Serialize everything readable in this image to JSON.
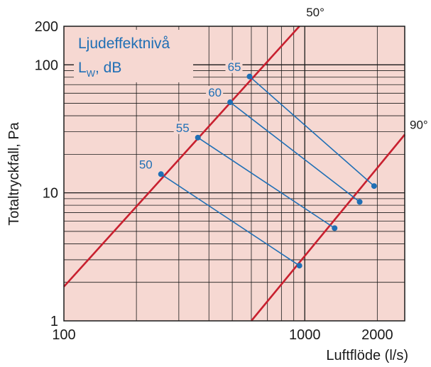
{
  "chart_data": {
    "type": "line",
    "title": "",
    "xlabel": "Luftflöde (l/s)",
    "ylabel": "Totaltryckfall, Pa",
    "xscale": "log",
    "yscale": "log",
    "xlim": [
      100,
      2600
    ],
    "ylim": [
      1,
      200
    ],
    "x_tick_labels": [
      {
        "value": 100,
        "label": "100"
      },
      {
        "value": 1000,
        "label": "1000"
      },
      {
        "value": 2000,
        "label": "2000"
      }
    ],
    "y_tick_labels": [
      {
        "value": 1,
        "label": "1"
      },
      {
        "value": 10,
        "label": "10"
      },
      {
        "value": 100,
        "label": "100"
      },
      {
        "value": 200,
        "label": "200"
      }
    ],
    "grid": true,
    "background_color": "#f6d8d2",
    "grid_color": "#1a1a1a",
    "legend_title": {
      "line1": "Ljudeffektnivå",
      "L": "L",
      "sub": "W",
      "rest": ", dB"
    },
    "damper_lines": [
      {
        "name": "50°",
        "color": "#c8202f",
        "x": [
          100,
          950
        ],
        "y": [
          1.85,
          200
        ]
      },
      {
        "name": "90°",
        "color": "#c8202f",
        "x": [
          600,
          2600
        ],
        "y": [
          1,
          28.5
        ]
      }
    ],
    "sound_lines": [
      {
        "label": "50",
        "color": "#1f6fb5",
        "x": [
          253,
          950
        ],
        "y": [
          14,
          2.7
        ]
      },
      {
        "label": "55",
        "color": "#1f6fb5",
        "x": [
          360,
          1330
        ],
        "y": [
          27,
          5.3
        ]
      },
      {
        "label": "60",
        "color": "#1f6fb5",
        "x": [
          490,
          1690
        ],
        "y": [
          51,
          8.5
        ]
      },
      {
        "label": "65",
        "color": "#1f6fb5",
        "x": [
          590,
          1940
        ],
        "y": [
          81,
          11.3
        ]
      }
    ]
  }
}
